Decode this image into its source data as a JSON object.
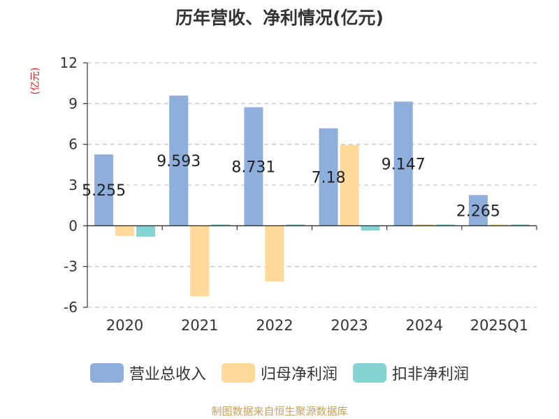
{
  "chart_data": {
    "type": "bar",
    "title": "历年营收、净利情况(亿元)",
    "ylabel": "(亿元)",
    "categories": [
      "2020",
      "2021",
      "2022",
      "2023",
      "2024",
      "2025Q1"
    ],
    "series": [
      {
        "name": "营业总收入",
        "color": "#8eaedb",
        "values": [
          5.255,
          9.593,
          8.731,
          7.18,
          9.147,
          2.265
        ]
      },
      {
        "name": "归母净利润",
        "color": "#ffd999",
        "values": [
          -0.75,
          -5.2,
          -4.1,
          5.95,
          0.12,
          0.07
        ]
      },
      {
        "name": "扣非净利润",
        "color": "#85d4d4",
        "values": [
          -0.8,
          0.08,
          0.0,
          -0.35,
          0.08,
          0.05
        ]
      }
    ],
    "data_labels": [
      "5.255",
      "9.593",
      "8.731",
      "7.18",
      "9.147",
      "2.265"
    ],
    "yticks": [
      12,
      9,
      6,
      3,
      0,
      -3,
      -6
    ],
    "ylim": [
      -6,
      12
    ],
    "grid": true,
    "legend_position": "bottom"
  },
  "source": "制图数据来自恒生聚源数据库",
  "colors": {
    "unit_label": "#e02020",
    "source": "#c8a060",
    "grid": "#c8c8c8"
  }
}
